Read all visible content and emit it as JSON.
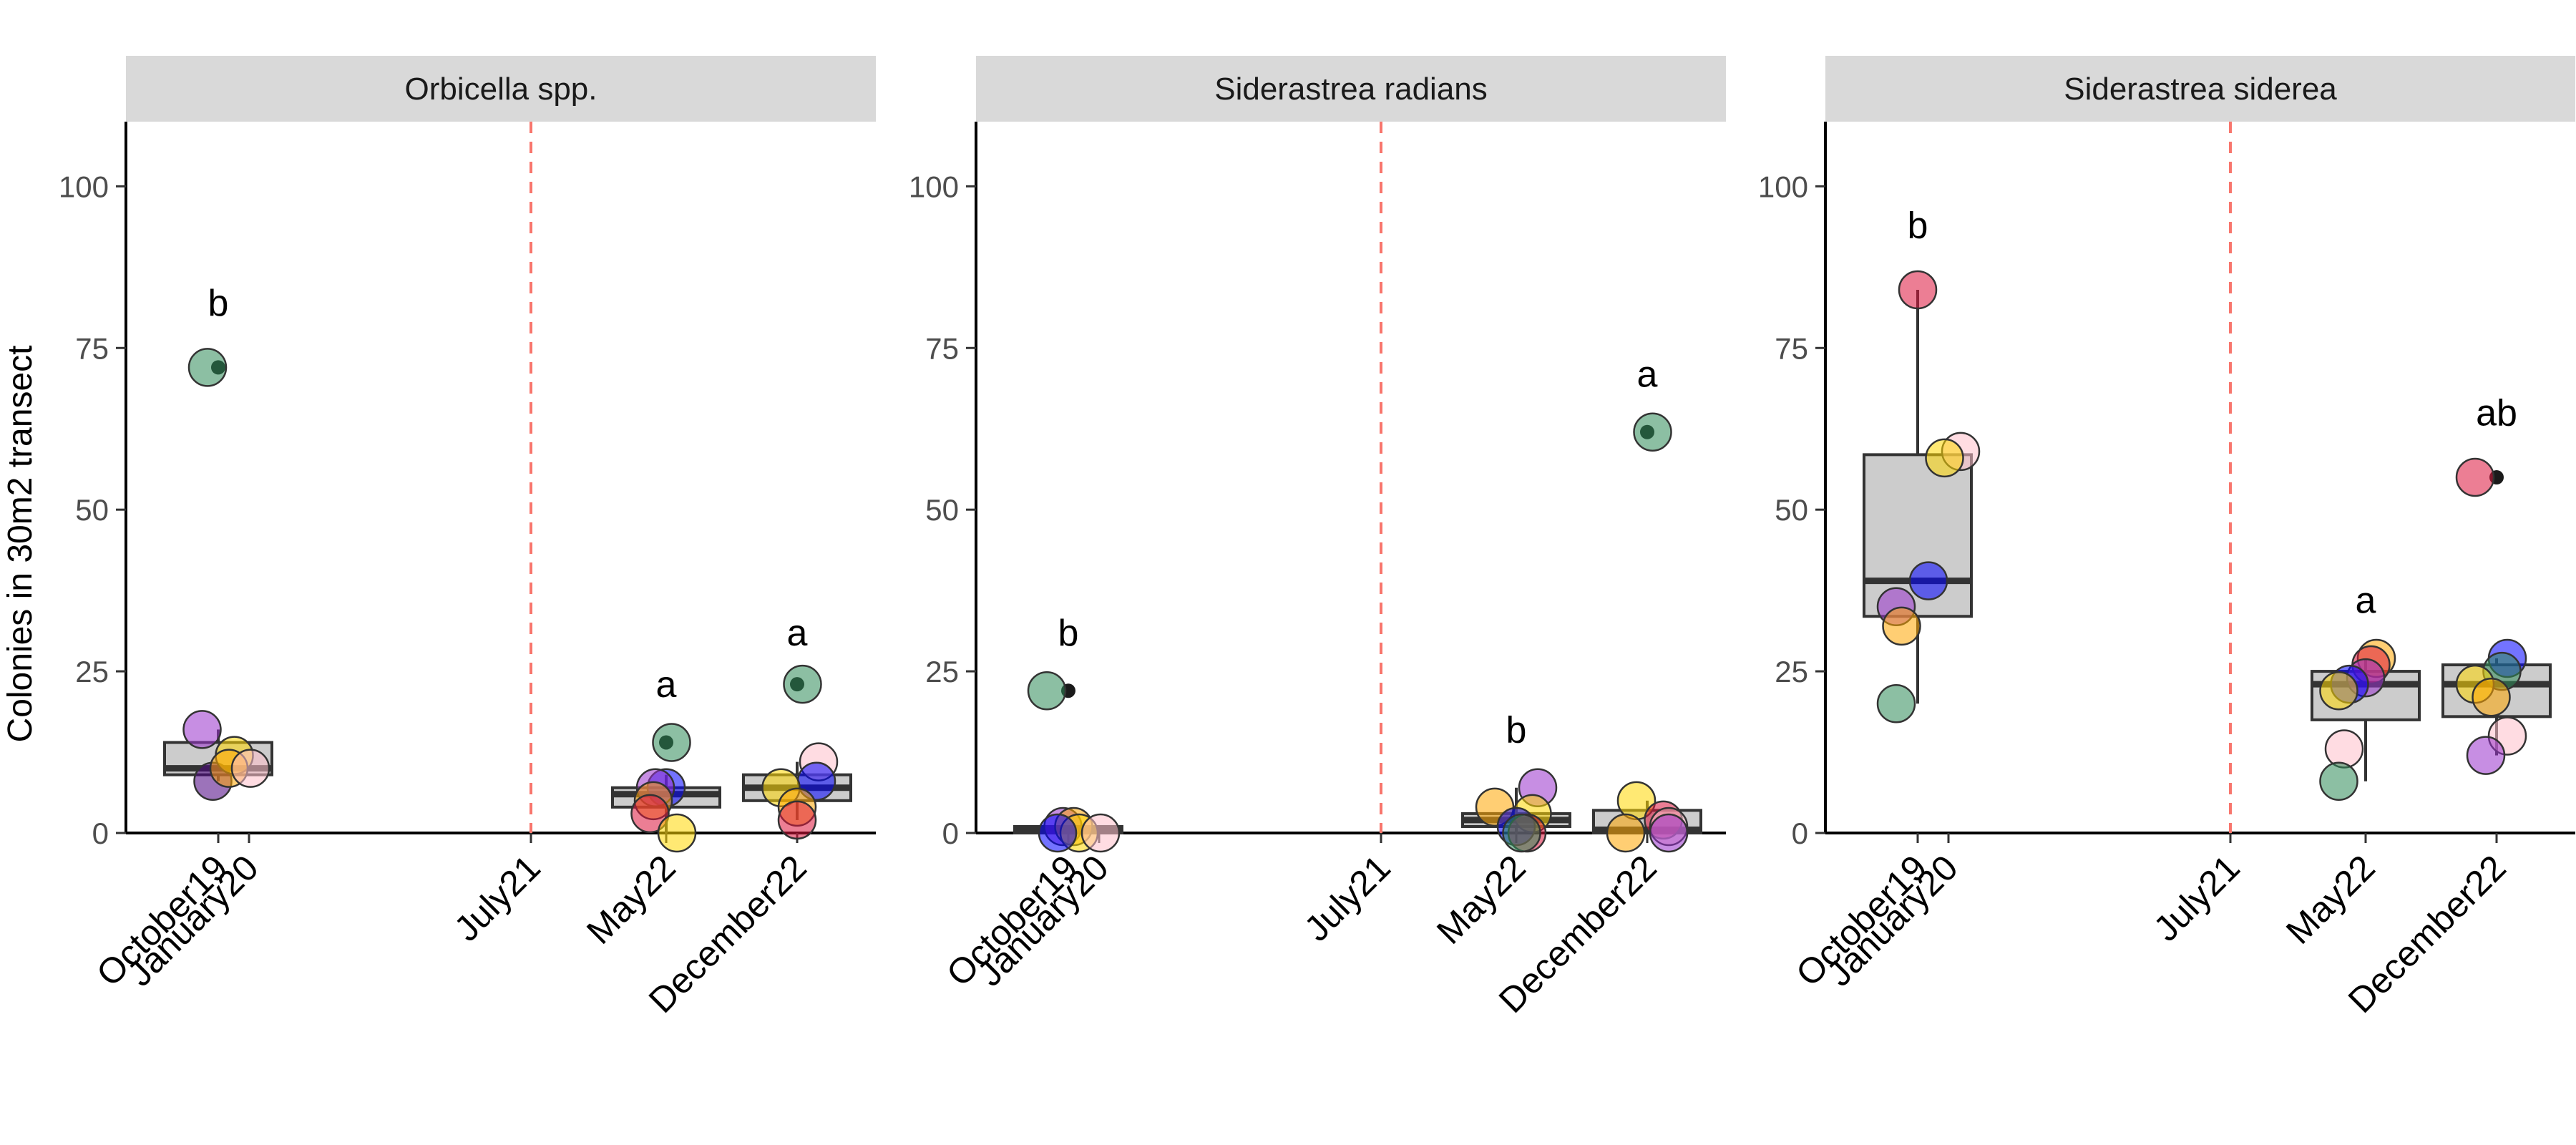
{
  "chart_data": {
    "type": "scatter",
    "overlay": "boxplot",
    "ylabel": "Colonies in 30m2 transect",
    "ylim": [
      0,
      110
    ],
    "y_ticks": [
      0,
      25,
      50,
      75,
      100
    ],
    "x_tick_labels": [
      "October19",
      "January20",
      "July21",
      "May22",
      "December22"
    ],
    "reference_line": {
      "at": "July21",
      "color": "#f8766d",
      "style": "dashed"
    },
    "grid": false,
    "site_colors": [
      "#2e8b57",
      "#9932cc",
      "#0000ff",
      "#ffd700",
      "#ffa500",
      "#dc143c",
      "#ffc0cb",
      "#4b0082"
    ],
    "panels": [
      {
        "facet": "Orbicella spp.",
        "groups": [
          {
            "sampling": "Oct19/Jan20",
            "letter": "b",
            "letter_y": 82,
            "box": {
              "q1": 9,
              "median": 10,
              "q3": 14,
              "wmin": 8,
              "wmax": 16
            },
            "outliers": [
              72
            ],
            "points": [
              {
                "y": 72,
                "c": 0,
                "dx": -0.1
              },
              {
                "y": 16,
                "c": 1,
                "dx": -0.15
              },
              {
                "y": 8,
                "c": 7,
                "dx": -0.05
              },
              {
                "y": 12,
                "c": 3,
                "dx": 0.15
              },
              {
                "y": 10,
                "c": 4,
                "dx": 0.1
              },
              {
                "y": 10,
                "c": 6,
                "dx": 0.3
              }
            ]
          },
          {
            "sampling": "May22",
            "letter": "a",
            "letter_y": 23,
            "box": {
              "q1": 4,
              "median": 6,
              "q3": 7,
              "wmin": 0,
              "wmax": 9
            },
            "outliers": [
              14
            ],
            "points": [
              {
                "y": 14,
                "c": 0,
                "dx": 0.05
              },
              {
                "y": 7,
                "c": 2,
                "dx": 0.0
              },
              {
                "y": 7,
                "c": 1,
                "dx": -0.1
              },
              {
                "y": 5,
                "c": 4,
                "dx": -0.12
              },
              {
                "y": 3,
                "c": 5,
                "dx": -0.15
              },
              {
                "y": 0,
                "c": 3,
                "dx": 0.1
              }
            ]
          },
          {
            "sampling": "December22",
            "letter": "a",
            "letter_y": 31,
            "box": {
              "q1": 5,
              "median": 7,
              "q3": 9,
              "wmin": 2,
              "wmax": 11
            },
            "outliers": [
              23
            ],
            "points": [
              {
                "y": 23,
                "c": 0,
                "dx": 0.05
              },
              {
                "y": 11,
                "c": 6,
                "dx": 0.2
              },
              {
                "y": 8,
                "c": 2,
                "dx": 0.18
              },
              {
                "y": 7,
                "c": 3,
                "dx": -0.15
              },
              {
                "y": 4,
                "c": 4,
                "dx": 0.0
              },
              {
                "y": 2,
                "c": 5,
                "dx": 0.0
              }
            ]
          }
        ]
      },
      {
        "facet": "Siderastrea radians",
        "groups": [
          {
            "sampling": "Oct19/Jan20",
            "letter": "b",
            "letter_y": 31,
            "box": {
              "q1": 0,
              "median": 0.5,
              "q3": 1,
              "wmin": 0,
              "wmax": 1
            },
            "outliers": [
              22
            ],
            "points": [
              {
                "y": 22,
                "c": 0,
                "dx": -0.2
              },
              {
                "y": 1,
                "c": 1,
                "dx": -0.05
              },
              {
                "y": 1,
                "c": 4,
                "dx": 0.05
              },
              {
                "y": 0,
                "c": 3,
                "dx": 0.1
              },
              {
                "y": 0,
                "c": 6,
                "dx": 0.3
              },
              {
                "y": 0,
                "c": 2,
                "dx": -0.1
              }
            ]
          },
          {
            "sampling": "May22",
            "letter": "b",
            "letter_y": 16,
            "box": {
              "q1": 1,
              "median": 2,
              "q3": 3,
              "wmin": 0,
              "wmax": 7
            },
            "outliers": [],
            "points": [
              {
                "y": 7,
                "c": 1,
                "dx": 0.2
              },
              {
                "y": 4,
                "c": 4,
                "dx": -0.2
              },
              {
                "y": 3,
                "c": 3,
                "dx": 0.15
              },
              {
                "y": 1,
                "c": 2,
                "dx": 0.0
              },
              {
                "y": 0,
                "c": 5,
                "dx": 0.1
              },
              {
                "y": 0,
                "c": 0,
                "dx": 0.05
              }
            ]
          },
          {
            "sampling": "December22",
            "letter": "a",
            "letter_y": 71,
            "box": {
              "q1": 0,
              "median": 0.5,
              "q3": 3.5,
              "wmin": 0,
              "wmax": 5
            },
            "outliers": [
              62
            ],
            "points": [
              {
                "y": 62,
                "c": 0,
                "dx": 0.05
              },
              {
                "y": 5,
                "c": 3,
                "dx": -0.1
              },
              {
                "y": 2,
                "c": 5,
                "dx": 0.15
              },
              {
                "y": 1,
                "c": 6,
                "dx": 0.2
              },
              {
                "y": 0,
                "c": 4,
                "dx": -0.2
              },
              {
                "y": 0,
                "c": 1,
                "dx": 0.2
              }
            ]
          }
        ]
      },
      {
        "facet": "Siderastrea siderea",
        "groups": [
          {
            "sampling": "Oct19/Jan20",
            "letter": "b",
            "letter_y": 94,
            "box": {
              "q1": 33.5,
              "median": 39,
              "q3": 58.5,
              "wmin": 20,
              "wmax": 84
            },
            "outliers": [],
            "points": [
              {
                "y": 84,
                "c": 5,
                "dx": 0.0
              },
              {
                "y": 59,
                "c": 6,
                "dx": 0.4
              },
              {
                "y": 58,
                "c": 3,
                "dx": 0.25
              },
              {
                "y": 39,
                "c": 2,
                "dx": 0.1
              },
              {
                "y": 35,
                "c": 1,
                "dx": -0.2
              },
              {
                "y": 32,
                "c": 4,
                "dx": -0.15
              },
              {
                "y": 20,
                "c": 0,
                "dx": -0.2
              }
            ]
          },
          {
            "sampling": "May22",
            "letter": "a",
            "letter_y": 36,
            "box": {
              "q1": 17.5,
              "median": 23,
              "q3": 25,
              "wmin": 8,
              "wmax": 27
            },
            "outliers": [],
            "points": [
              {
                "y": 27,
                "c": 4,
                "dx": 0.1
              },
              {
                "y": 26,
                "c": 5,
                "dx": 0.05
              },
              {
                "y": 24,
                "c": 1,
                "dx": 0.0
              },
              {
                "y": 23,
                "c": 2,
                "dx": -0.15
              },
              {
                "y": 22,
                "c": 3,
                "dx": -0.25
              },
              {
                "y": 13,
                "c": 6,
                "dx": -0.2
              },
              {
                "y": 8,
                "c": 0,
                "dx": -0.25
              }
            ]
          },
          {
            "sampling": "December22",
            "letter": "ab",
            "letter_y": 65,
            "box": {
              "q1": 18,
              "median": 23,
              "q3": 26,
              "wmin": 12,
              "wmax": 27
            },
            "outliers": [
              55
            ],
            "points": [
              {
                "y": 55,
                "c": 5,
                "dx": -0.2
              },
              {
                "y": 27,
                "c": 2,
                "dx": 0.1
              },
              {
                "y": 25,
                "c": 0,
                "dx": 0.05
              },
              {
                "y": 23,
                "c": 3,
                "dx": -0.2
              },
              {
                "y": 21,
                "c": 4,
                "dx": -0.05
              },
              {
                "y": 15,
                "c": 6,
                "dx": 0.1
              },
              {
                "y": 12,
                "c": 1,
                "dx": -0.1
              }
            ]
          }
        ]
      }
    ]
  }
}
